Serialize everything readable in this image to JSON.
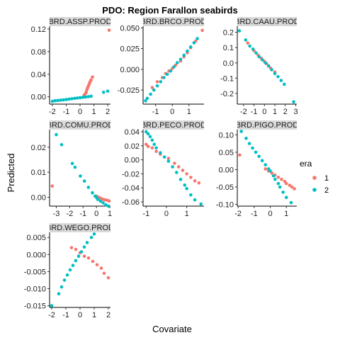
{
  "chart_data": {
    "type": "scatter",
    "title": "PDO: Region Farallon seabirds",
    "xlabel": "Covariate",
    "ylabel": "Predicted",
    "grid": false,
    "legend": {
      "title": "era",
      "placement": "right",
      "entries": [
        {
          "label": "1",
          "color": "#F8766D"
        },
        {
          "label": "2",
          "color": "#00BFC4"
        }
      ]
    },
    "panels": [
      {
        "strip": "BRD.ASSP.PROD",
        "xlim": [
          -2.2,
          2.2
        ],
        "ylim": [
          -0.013,
          0.125
        ],
        "xticks": [
          -2,
          -1,
          0,
          1,
          2
        ],
        "yticks": [
          0.0,
          0.04,
          0.08,
          0.12
        ],
        "ytick_labels": [
          "0.00",
          "0.04",
          "0.08",
          "0.12"
        ],
        "series": [
          {
            "name": "1",
            "points": [
              [
                0.3,
                0.003
              ],
              [
                0.4,
                0.006
              ],
              [
                0.45,
                0.009
              ],
              [
                0.5,
                0.013
              ],
              [
                0.55,
                0.016
              ],
              [
                0.6,
                0.019
              ],
              [
                0.65,
                0.022
              ],
              [
                0.7,
                0.025
              ],
              [
                0.75,
                0.028
              ],
              [
                0.8,
                0.03
              ],
              [
                0.9,
                0.035
              ],
              [
                2.1,
                0.118
              ]
            ]
          },
          {
            "name": "2",
            "points": [
              [
                -2.0,
                -0.008
              ],
              [
                -1.8,
                -0.007
              ],
              [
                -1.6,
                -0.0065
              ],
              [
                -1.4,
                -0.006
              ],
              [
                -1.2,
                -0.0055
              ],
              [
                -1.0,
                -0.0048
              ],
              [
                -0.8,
                -0.0042
              ],
              [
                -0.6,
                -0.0035
              ],
              [
                -0.4,
                -0.0028
              ],
              [
                -0.2,
                -0.0022
              ],
              [
                0.0,
                -0.0016
              ],
              [
                0.2,
                -0.001
              ],
              [
                0.4,
                -0.0004
              ],
              [
                0.6,
                0.0003
              ],
              [
                0.8,
                0.001
              ],
              [
                1.7,
                0.008
              ],
              [
                2.0,
                0.01
              ]
            ]
          }
        ]
      },
      {
        "strip": "BRD.BRCO.PROD",
        "xlim": [
          -1.75,
          1.9
        ],
        "ylim": [
          -0.042,
          0.052
        ],
        "xticks": [
          -1,
          0,
          1
        ],
        "yticks": [
          -0.025,
          0.0,
          0.025,
          0.05
        ],
        "ytick_labels": [
          "-0.025",
          "0.000",
          "0.025",
          "0.050"
        ],
        "series": [
          {
            "name": "1",
            "points": [
              [
                -1.2,
                -0.022
              ],
              [
                -0.9,
                -0.015
              ],
              [
                -0.6,
                -0.01
              ],
              [
                -0.4,
                -0.005
              ],
              [
                -0.2,
                -0.002
              ],
              [
                0.0,
                0.001
              ],
              [
                0.2,
                0.005
              ],
              [
                0.5,
                0.01
              ],
              [
                0.7,
                0.015
              ],
              [
                0.9,
                0.02
              ],
              [
                1.1,
                0.026
              ],
              [
                1.4,
                0.034
              ],
              [
                1.8,
                0.047
              ]
            ]
          },
          {
            "name": "2",
            "points": [
              [
                -1.6,
                -0.038
              ],
              [
                -1.5,
                -0.035
              ],
              [
                -1.3,
                -0.03
              ],
              [
                -1.1,
                -0.025
              ],
              [
                -0.9,
                -0.02
              ],
              [
                -0.7,
                -0.015
              ],
              [
                -0.5,
                -0.01
              ],
              [
                -0.3,
                -0.006
              ],
              [
                -0.1,
                -0.002
              ],
              [
                0.1,
                0.003
              ],
              [
                0.3,
                0.008
              ],
              [
                0.5,
                0.012
              ],
              [
                0.7,
                0.017
              ],
              [
                0.9,
                0.022
              ],
              [
                1.1,
                0.027
              ],
              [
                1.3,
                0.032
              ],
              [
                1.5,
                0.037
              ]
            ]
          }
        ]
      },
      {
        "strip": "BRD.CAAU.PROD",
        "xlim": [
          -2.6,
          3.1
        ],
        "ylim": [
          -0.27,
          0.24
        ],
        "xticks": [
          -2,
          -1,
          0,
          1,
          2,
          3
        ],
        "yticks": [
          -0.2,
          -0.1,
          0.0,
          0.1,
          0.2
        ],
        "ytick_labels": [
          "-0.2",
          "-0.1",
          "0.0",
          "0.1",
          "0.2"
        ],
        "series": [
          {
            "name": "1",
            "points": [
              [
                -1.6,
                0.13
              ],
              [
                -1.0,
                0.08
              ],
              [
                -0.6,
                0.05
              ],
              [
                -0.3,
                0.03
              ],
              [
                0.0,
                0.01
              ],
              [
                0.2,
                -0.005
              ],
              [
                0.4,
                -0.02
              ],
              [
                0.6,
                -0.035
              ],
              [
                1.0,
                -0.06
              ]
            ]
          },
          {
            "name": "2",
            "points": [
              [
                -2.4,
                0.21
              ],
              [
                -1.8,
                0.15
              ],
              [
                -1.4,
                0.11
              ],
              [
                -1.1,
                0.09
              ],
              [
                -0.8,
                0.065
              ],
              [
                -0.5,
                0.04
              ],
              [
                -0.2,
                0.02
              ],
              [
                0.1,
                0.0
              ],
              [
                0.4,
                -0.02
              ],
              [
                0.7,
                -0.045
              ],
              [
                1.0,
                -0.07
              ],
              [
                1.3,
                -0.09
              ],
              [
                1.6,
                -0.115
              ],
              [
                1.9,
                -0.14
              ],
              [
                2.8,
                -0.255
              ]
            ]
          }
        ]
      },
      {
        "strip": "BRD.COMU.PROD",
        "xlim": [
          -3.5,
          1.05
        ],
        "ylim": [
          -0.0035,
          0.027
        ],
        "xticks": [
          -3,
          -2,
          -1,
          0,
          1
        ],
        "yticks": [
          0.0,
          0.01,
          0.02
        ],
        "ytick_labels": [
          "0.00",
          "0.01",
          "0.02"
        ],
        "series": [
          {
            "name": "1",
            "points": [
              [
                -3.3,
                0.0045
              ],
              [
                0.0,
                0.0005
              ],
              [
                0.2,
                0.0
              ],
              [
                0.35,
                -0.0005
              ],
              [
                0.5,
                -0.0008
              ],
              [
                0.65,
                -0.001
              ],
              [
                0.8,
                -0.0012
              ],
              [
                0.95,
                -0.0014
              ]
            ]
          },
          {
            "name": "2",
            "points": [
              [
                -3.0,
                0.025
              ],
              [
                -2.6,
                0.021
              ],
              [
                -1.8,
                0.0135
              ],
              [
                -1.6,
                0.012
              ],
              [
                -1.2,
                0.0085
              ],
              [
                -0.9,
                0.0065
              ],
              [
                -0.6,
                0.004
              ],
              [
                -0.3,
                0.0018
              ],
              [
                -0.1,
                0.0005
              ],
              [
                0.0,
                0.0
              ],
              [
                0.1,
                -0.0008
              ],
              [
                0.3,
                -0.0015
              ],
              [
                0.5,
                -0.0022
              ],
              [
                0.7,
                -0.003
              ],
              [
                0.9,
                -0.0035
              ]
            ]
          }
        ]
      },
      {
        "strip": "BRD.PECO.PROD",
        "xlim": [
          -1.15,
          1.85
        ],
        "ylim": [
          -0.066,
          0.043
        ],
        "xticks": [
          -1,
          0,
          1
        ],
        "yticks": [
          0.04,
          0.02,
          0.0,
          -0.02,
          -0.04,
          -0.06
        ],
        "ytick_labels": [
          "0.04",
          "0.02",
          "0.00",
          "-0.02",
          "-0.04",
          "-0.06"
        ],
        "series": [
          {
            "name": "1",
            "points": [
              [
                -1.0,
                0.022
              ],
              [
                -0.9,
                0.019
              ],
              [
                -0.7,
                0.017
              ],
              [
                -0.5,
                0.012
              ],
              [
                -0.3,
                0.008
              ],
              [
                0.1,
                0.002
              ],
              [
                0.4,
                -0.005
              ],
              [
                0.6,
                -0.01
              ],
              [
                0.8,
                -0.015
              ],
              [
                1.0,
                -0.02
              ],
              [
                1.2,
                -0.025
              ],
              [
                1.4,
                -0.03
              ],
              [
                1.6,
                -0.033
              ]
            ]
          },
          {
            "name": "2",
            "points": [
              [
                -1.0,
                0.04
              ],
              [
                -0.9,
                0.037
              ],
              [
                -0.8,
                0.033
              ],
              [
                -0.7,
                0.028
              ],
              [
                -0.6,
                0.022
              ],
              [
                -0.5,
                0.017
              ],
              [
                -0.3,
                0.01
              ],
              [
                -0.1,
                0.004
              ],
              [
                0.1,
                -0.002
              ],
              [
                0.3,
                -0.01
              ],
              [
                0.5,
                -0.018
              ],
              [
                0.7,
                -0.028
              ],
              [
                0.9,
                -0.036
              ],
              [
                1.0,
                -0.041
              ],
              [
                1.2,
                -0.05
              ],
              [
                1.4,
                -0.057
              ],
              [
                1.7,
                -0.063
              ]
            ]
          }
        ]
      },
      {
        "strip": "BRD.PIGO.PROD",
        "xlim": [
          -2.05,
          1.65
        ],
        "ylim": [
          -0.105,
          0.115
        ],
        "xticks": [
          -2,
          -1,
          0,
          1
        ],
        "yticks": [
          0.1,
          0.05,
          0.0,
          -0.05,
          -0.1
        ],
        "ytick_labels": [
          "0.10",
          "0.05",
          "0.00",
          "-0.05",
          "-0.10"
        ],
        "series": [
          {
            "name": "1",
            "points": [
              [
                -1.9,
                0.042
              ],
              [
                -0.3,
                0.002
              ],
              [
                -0.1,
                -0.004
              ],
              [
                0.1,
                -0.01
              ],
              [
                0.3,
                -0.016
              ],
              [
                0.5,
                -0.022
              ],
              [
                0.7,
                -0.028
              ],
              [
                0.9,
                -0.034
              ],
              [
                1.0,
                -0.04
              ],
              [
                1.2,
                -0.045
              ],
              [
                1.35,
                -0.05
              ],
              [
                1.5,
                -0.055
              ]
            ]
          },
          {
            "name": "2",
            "points": [
              [
                -1.8,
                0.11
              ],
              [
                -1.5,
                0.09
              ],
              [
                -1.3,
                0.075
              ],
              [
                -1.1,
                0.062
              ],
              [
                -0.9,
                0.05
              ],
              [
                -0.7,
                0.038
              ],
              [
                -0.5,
                0.026
              ],
              [
                -0.3,
                0.014
              ],
              [
                -0.1,
                0.002
              ],
              [
                0.0,
                -0.004
              ],
              [
                0.2,
                -0.018
              ],
              [
                0.3,
                -0.028
              ],
              [
                0.5,
                -0.04
              ],
              [
                0.6,
                -0.05
              ],
              [
                0.8,
                -0.065
              ],
              [
                1.0,
                -0.08
              ],
              [
                1.3,
                -0.095
              ]
            ]
          }
        ]
      },
      {
        "strip": "BRD.WEGO.PROD",
        "xlim": [
          -2.15,
          2.15
        ],
        "ylim": [
          -0.0155,
          0.0065
        ],
        "xticks": [
          -2,
          -1,
          0,
          1,
          2
        ],
        "yticks": [
          0.005,
          0.0,
          -0.005,
          -0.01,
          -0.015
        ],
        "ytick_labels": [
          "0.005",
          "0.000",
          "-0.005",
          "-0.010",
          "-0.015"
        ],
        "series": [
          {
            "name": "1",
            "points": [
              [
                -0.6,
                0.002
              ],
              [
                -0.3,
                0.0015
              ],
              [
                0.0,
                0.0005
              ],
              [
                0.3,
                -0.0005
              ],
              [
                0.6,
                -0.001
              ],
              [
                0.9,
                -0.002
              ],
              [
                1.2,
                -0.003
              ],
              [
                1.5,
                -0.004
              ],
              [
                1.7,
                -0.0055
              ],
              [
                2.0,
                -0.0068
              ]
            ]
          },
          {
            "name": "2",
            "points": [
              [
                -2.0,
                -0.015
              ],
              [
                -1.5,
                -0.0115
              ],
              [
                -1.3,
                -0.0095
              ],
              [
                -1.1,
                -0.0075
              ],
              [
                -0.9,
                -0.006
              ],
              [
                -0.7,
                -0.0045
              ],
              [
                -0.5,
                -0.0032
              ],
              [
                -0.3,
                -0.0018
              ],
              [
                -0.1,
                -0.0005
              ],
              [
                0.1,
                0.0008
              ],
              [
                0.3,
                0.0022
              ],
              [
                0.5,
                0.0035
              ],
              [
                0.8,
                0.005
              ],
              [
                1.0,
                0.006
              ]
            ]
          }
        ]
      }
    ]
  }
}
